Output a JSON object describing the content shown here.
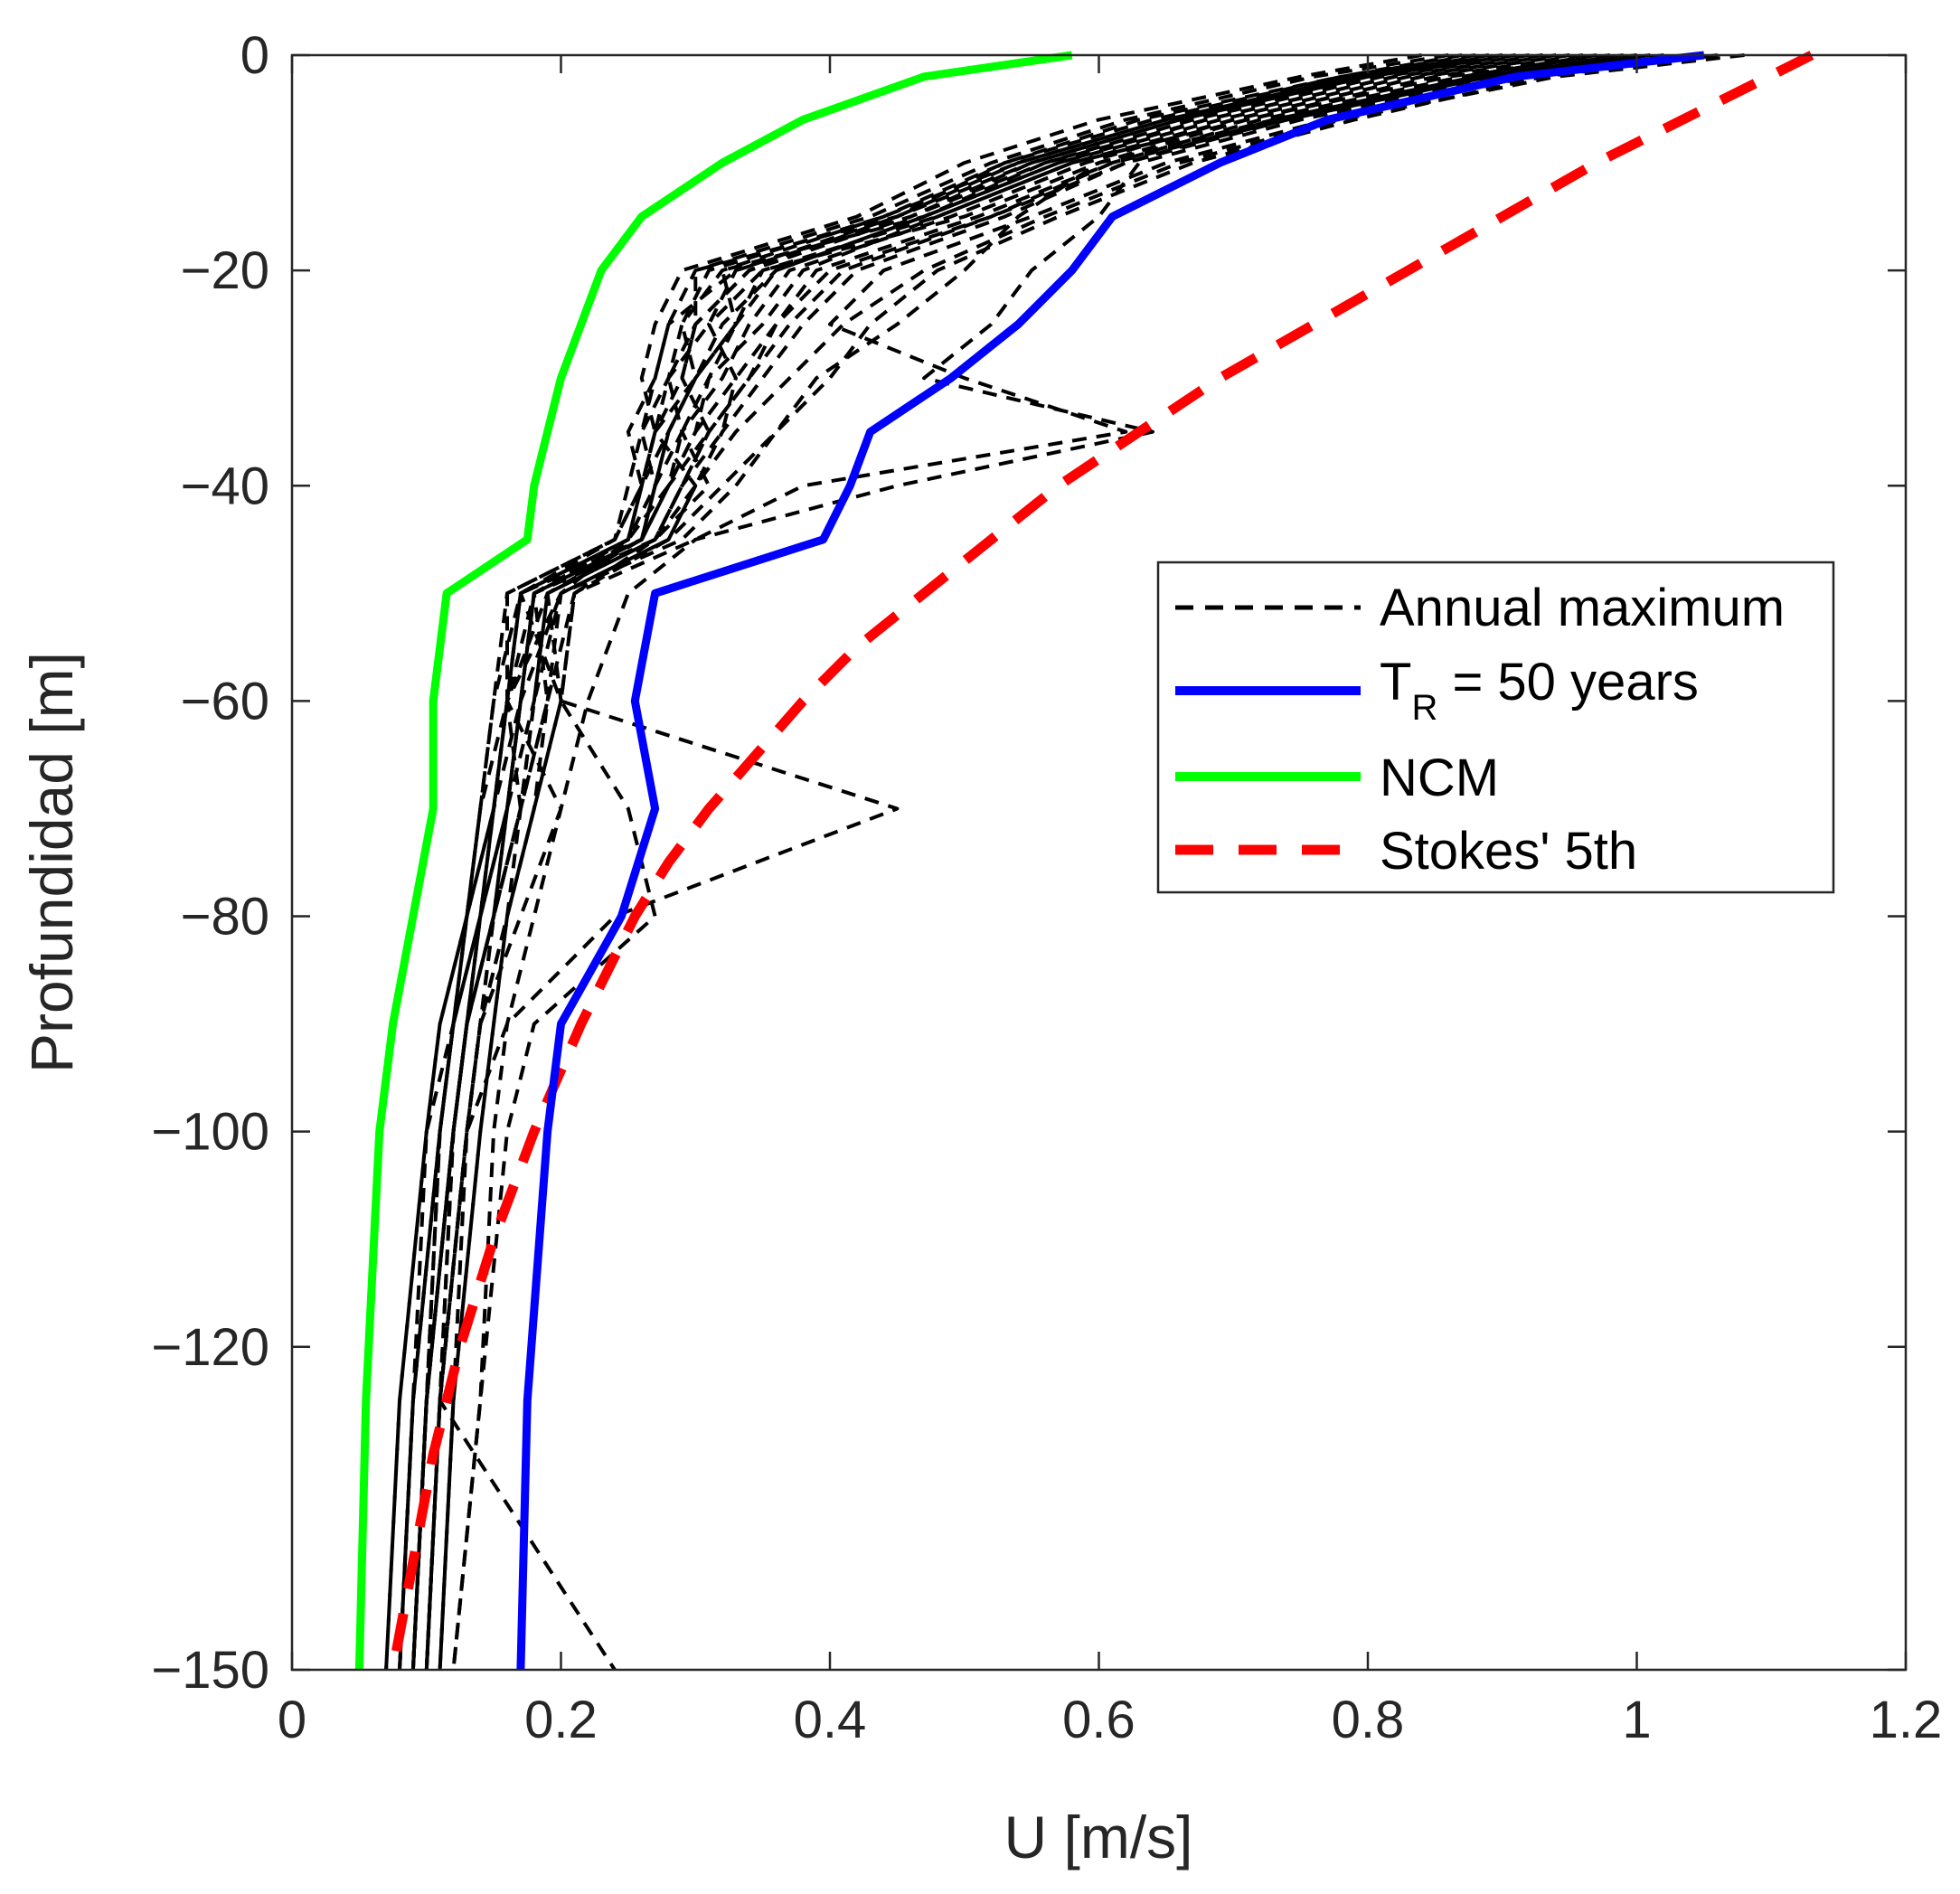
{
  "chart_data": {
    "type": "line",
    "title": "",
    "xlabel": "U [m/s]",
    "ylabel": "Profundidad [m]",
    "xlim": [
      0,
      1.2
    ],
    "ylim": [
      -150,
      0
    ],
    "x_ticks": [
      0,
      0.2,
      0.4,
      0.6,
      0.8,
      1,
      1.2
    ],
    "x_tick_labels": [
      "0",
      "0.2",
      "0.4",
      "0.6",
      "0.8",
      "1",
      "1.2"
    ],
    "y_ticks": [
      0,
      -20,
      -40,
      -60,
      -80,
      -100,
      -120,
      -150
    ],
    "y_tick_labels": [
      "0",
      "−20",
      "−40",
      "−60",
      "−80",
      "−100",
      "−120",
      "−150"
    ],
    "grid": false,
    "legend": {
      "position": "center-right",
      "entries": [
        {
          "label": "Annual maximum",
          "series": "annual"
        },
        {
          "label_main": "T",
          "label_sub": "R",
          "label_rest": " = 50 years",
          "series": "tr50"
        },
        {
          "label": "NCM",
          "series": "ncm"
        },
        {
          "label": "Stokes' 5th",
          "series": "stokes"
        }
      ]
    },
    "depths": [
      0,
      -2,
      -6,
      -10,
      -15,
      -20,
      -25,
      -30,
      -35,
      -40,
      -45,
      -50,
      -60,
      -70,
      -80,
      -90,
      -100,
      -125,
      -150
    ],
    "series": [
      {
        "name": "T_R = 50 years",
        "key": "tr50",
        "color": "#0000ff",
        "style": "solid",
        "values": [
          1.05,
          0.91,
          0.77,
          0.69,
          0.61,
          0.58,
          0.54,
          0.49,
          0.43,
          0.415,
          0.395,
          0.27,
          0.255,
          0.27,
          0.245,
          0.2,
          0.19,
          0.175,
          0.17
        ]
      },
      {
        "name": "NCM",
        "key": "ncm",
        "color": "#00ff00",
        "style": "solid",
        "values": [
          0.58,
          0.47,
          0.38,
          0.32,
          0.26,
          0.23,
          0.215,
          0.2,
          0.19,
          0.18,
          0.175,
          0.115,
          0.105,
          0.105,
          0.09,
          0.075,
          0.065,
          0.055,
          0.05
        ]
      },
      {
        "name": "Stokes' 5th",
        "key": "stokes",
        "color": "#ff0000",
        "style": "dashed",
        "depths": [
          0,
          -5,
          -10,
          -15,
          -20,
          -25,
          -30,
          -35,
          -40,
          -45,
          -50,
          -55,
          -60,
          -65,
          -70,
          -75,
          -80,
          -90,
          -100,
          -110,
          -120,
          -130,
          -140,
          -150
        ],
        "values": [
          1.13,
          1.05,
          0.97,
          0.9,
          0.83,
          0.76,
          0.69,
          0.63,
          0.57,
          0.52,
          0.47,
          0.42,
          0.38,
          0.345,
          0.31,
          0.28,
          0.255,
          0.215,
          0.18,
          0.15,
          0.125,
          0.105,
          0.09,
          0.075
        ]
      },
      {
        "name": "Annual maximum",
        "key": "annual",
        "color": "#000000",
        "style": "dashed",
        "profiles": [
          [
            0.87,
            0.78,
            0.64,
            0.53,
            0.45,
            0.3,
            0.3,
            0.29,
            0.31,
            0.28,
            0.26,
            0.19,
            0.16,
            0.15,
            0.13,
            0.11,
            0.1,
            0.08,
            0.07
          ],
          [
            0.93,
            0.82,
            0.68,
            0.57,
            0.47,
            0.32,
            0.33,
            0.3,
            0.27,
            0.3,
            0.28,
            0.2,
            0.17,
            0.16,
            0.14,
            0.12,
            0.11,
            0.09,
            0.08
          ],
          [
            0.98,
            0.86,
            0.71,
            0.6,
            0.5,
            0.35,
            0.31,
            0.33,
            0.32,
            0.29,
            0.27,
            0.18,
            0.19,
            0.17,
            0.15,
            0.13,
            0.12,
            0.1,
            0.09
          ],
          [
            1.01,
            0.89,
            0.74,
            0.62,
            0.52,
            0.4,
            0.36,
            0.33,
            0.3,
            0.28,
            0.25,
            0.2,
            0.16,
            0.2,
            0.17,
            0.14,
            0.13,
            0.11,
            0.1
          ],
          [
            1.08,
            0.94,
            0.78,
            0.66,
            0.56,
            0.47,
            0.41,
            0.37,
            0.33,
            0.3,
            0.27,
            0.21,
            0.2,
            0.18,
            0.16,
            0.15,
            0.14,
            0.12,
            0.11
          ],
          [
            0.9,
            0.8,
            0.66,
            0.55,
            0.46,
            0.33,
            0.28,
            0.27,
            0.26,
            0.27,
            0.26,
            0.17,
            0.16,
            0.15,
            0.14,
            0.12,
            0.11,
            0.1,
            0.09
          ],
          [
            0.95,
            0.84,
            0.7,
            0.59,
            0.49,
            0.37,
            0.34,
            0.32,
            0.29,
            0.31,
            0.27,
            0.19,
            0.18,
            0.16,
            0.15,
            0.13,
            0.12,
            0.11,
            0.1
          ],
          [
            1.0,
            0.88,
            0.73,
            0.6,
            0.54,
            0.5,
            0.45,
            0.39,
            0.36,
            0.33,
            0.29,
            0.2,
            0.19,
            0.17,
            0.16,
            0.14,
            0.13,
            0.11,
            0.1
          ],
          [
            0.84,
            0.75,
            0.6,
            0.5,
            0.42,
            0.29,
            0.27,
            0.26,
            0.27,
            0.26,
            0.24,
            0.16,
            0.15,
            0.14,
            0.13,
            0.12,
            0.1,
            0.09,
            0.08
          ],
          [
            0.96,
            0.85,
            0.71,
            0.58,
            0.48,
            0.38,
            0.35,
            0.31,
            0.3,
            0.28,
            0.26,
            0.18,
            0.17,
            0.16,
            0.14,
            0.13,
            0.12,
            0.1,
            0.09
          ],
          [
            0.92,
            0.81,
            0.67,
            0.56,
            0.46,
            0.34,
            0.3,
            0.28,
            0.29,
            0.27,
            0.25,
            0.18,
            0.16,
            0.15,
            0.14,
            0.12,
            0.11,
            0.1,
            0.09
          ],
          [
            1.02,
            0.9,
            0.75,
            0.63,
            0.6,
            0.55,
            0.52,
            0.47,
            0.64,
            0.45,
            0.3,
            0.25,
            0.22,
            0.2,
            0.18,
            0.16,
            0.15,
            0.14,
            0.12
          ],
          [
            0.89,
            0.79,
            0.65,
            0.54,
            0.44,
            0.31,
            0.29,
            0.3,
            0.28,
            0.26,
            0.25,
            0.17,
            0.16,
            0.15,
            0.13,
            0.12,
            0.11,
            0.09,
            0.08
          ],
          [
            0.97,
            0.87,
            0.72,
            0.61,
            0.51,
            0.39,
            0.36,
            0.34,
            0.31,
            0.29,
            0.27,
            0.19,
            0.2,
            0.18,
            0.16,
            0.14,
            0.13,
            0.11,
            0.1
          ],
          [
            0.86,
            0.76,
            0.62,
            0.52,
            0.43,
            0.3,
            0.28,
            0.27,
            0.25,
            0.26,
            0.24,
            0.16,
            0.16,
            0.14,
            0.13,
            0.11,
            0.1,
            0.08,
            0.07
          ],
          [
            0.99,
            0.88,
            0.73,
            0.62,
            0.53,
            0.42,
            0.38,
            0.35,
            0.32,
            0.3,
            0.28,
            0.2,
            0.18,
            0.17,
            0.15,
            0.14,
            0.13,
            0.11,
            0.1
          ],
          [
            0.94,
            0.83,
            0.69,
            0.57,
            0.47,
            0.36,
            0.32,
            0.3,
            0.28,
            0.27,
            0.26,
            0.18,
            0.17,
            0.16,
            0.14,
            0.13,
            0.12,
            0.1,
            0.09
          ],
          [
            1.04,
            0.92,
            0.77,
            0.65,
            0.55,
            0.44,
            0.4,
            0.5,
            0.62,
            0.38,
            0.3,
            0.21,
            0.19,
            0.18,
            0.16,
            0.15,
            0.14,
            0.12,
            0.11
          ],
          [
            0.91,
            0.8,
            0.66,
            0.55,
            0.45,
            0.33,
            0.31,
            0.28,
            0.27,
            0.26,
            0.25,
            0.17,
            0.2,
            0.45,
            0.24,
            0.16,
            0.13,
            0.12,
            0.11
          ],
          [
            0.88,
            0.78,
            0.63,
            0.53,
            0.44,
            0.32,
            0.29,
            0.28,
            0.26,
            0.25,
            0.24,
            0.17,
            0.16,
            0.17,
            0.15,
            0.13,
            0.12,
            0.11,
            0.24
          ],
          [
            1.06,
            0.93,
            0.79,
            0.67,
            0.57,
            0.48,
            0.43,
            0.4,
            0.36,
            0.32,
            0.28,
            0.21,
            0.2,
            0.25,
            0.27,
            0.18,
            0.16,
            0.14,
            0.12
          ],
          [
            0.95,
            0.84,
            0.7,
            0.58,
            0.48,
            0.35,
            0.33,
            0.31,
            0.29,
            0.28,
            0.26,
            0.18,
            0.17,
            0.16,
            0.15,
            0.13,
            0.12,
            0.1,
            0.09
          ],
          [
            0.9,
            0.79,
            0.65,
            0.54,
            0.45,
            0.34,
            0.3,
            0.29,
            0.27,
            0.26,
            0.25,
            0.17,
            0.15,
            0.14,
            0.13,
            0.12,
            0.11,
            0.09,
            0.08
          ],
          [
            1.0,
            0.89,
            0.74,
            0.61,
            0.52,
            0.41,
            0.37,
            0.34,
            0.31,
            0.29,
            0.27,
            0.19,
            0.18,
            0.17,
            0.15,
            0.14,
            0.13,
            0.11,
            0.1
          ],
          [
            0.93,
            0.82,
            0.68,
            0.56,
            0.47,
            0.36,
            0.33,
            0.3,
            0.28,
            0.27,
            0.26,
            0.18,
            0.17,
            0.15,
            0.14,
            0.13,
            0.12,
            0.1,
            0.09
          ]
        ]
      }
    ]
  }
}
